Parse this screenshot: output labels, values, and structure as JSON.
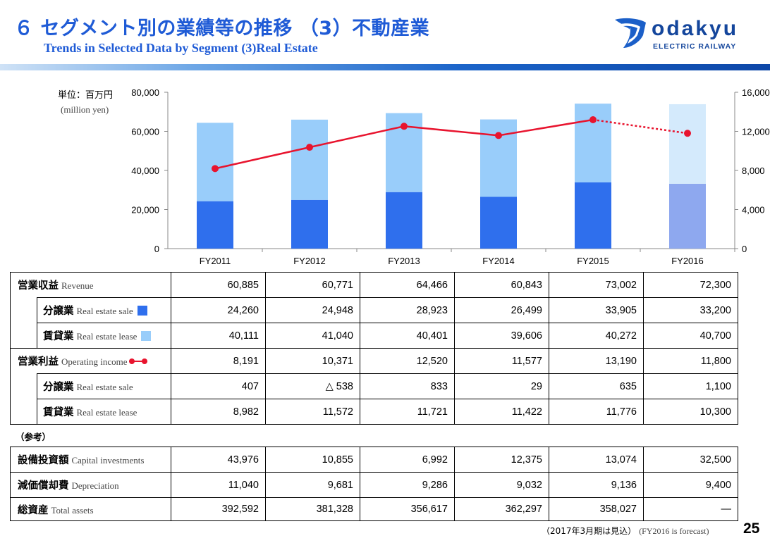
{
  "header": {
    "title_jp": "６ セグメント別の業績等の推移 （3）不動産業",
    "title_en": "Trends in Selected Data by Segment (3)Real Estate",
    "logo_word": "odakyu",
    "logo_sub": "ELECTRIC RAILWAY"
  },
  "unit": {
    "jp": "単位：百万円",
    "en": "(million yen)"
  },
  "chart_data": {
    "type": "bar",
    "categories": [
      "FY2011",
      "FY2012",
      "FY2013",
      "FY2014",
      "FY2015",
      "FY2016"
    ],
    "forecast_index": 5,
    "series": [
      {
        "name": "Real estate sale",
        "kind": "stacked-bar",
        "axis": "left",
        "color": "#2f6fed",
        "forecast_color": "#8ea8ef",
        "values": [
          24260,
          24948,
          28923,
          26499,
          33905,
          33200
        ]
      },
      {
        "name": "Real estate lease",
        "kind": "stacked-bar",
        "axis": "left",
        "color": "#99cdfa",
        "forecast_color": "#d4eafc",
        "values": [
          40111,
          41040,
          40401,
          39606,
          40272,
          40700
        ]
      },
      {
        "name": "Operating income",
        "kind": "line",
        "axis": "right",
        "color": "#e8142e",
        "values": [
          8191,
          10371,
          12520,
          11577,
          13190,
          11800
        ]
      }
    ],
    "y_left": {
      "min": 0,
      "max": 80000,
      "ticks": [
        "0",
        "20,000",
        "40,000",
        "60,000",
        "80,000"
      ],
      "tick_values": [
        0,
        20000,
        40000,
        60000,
        80000
      ]
    },
    "y_right": {
      "min": 0,
      "max": 16000,
      "ticks": [
        "0",
        "4,000",
        "8,000",
        "12,000",
        "16,000"
      ],
      "tick_values": [
        0,
        4000,
        8000,
        12000,
        16000
      ]
    }
  },
  "table": {
    "rows": [
      {
        "jp": "営業収益",
        "en": "Revenue",
        "indent": false,
        "values": [
          "60,885",
          "60,771",
          "64,466",
          "60,843",
          "73,002",
          "72,300"
        ]
      },
      {
        "jp": "分譲業",
        "en": "Real estate sale",
        "indent": true,
        "legend": "sale",
        "values": [
          "24,260",
          "24,948",
          "28,923",
          "26,499",
          "33,905",
          "33,200"
        ]
      },
      {
        "jp": "賃貸業",
        "en": "Real estate lease",
        "indent": true,
        "legend": "lease",
        "values": [
          "40,111",
          "41,040",
          "40,401",
          "39,606",
          "40,272",
          "40,700"
        ]
      },
      {
        "jp": "営業利益",
        "en": "Operating income",
        "indent": false,
        "legend": "line",
        "values": [
          "8,191",
          "10,371",
          "12,520",
          "11,577",
          "13,190",
          "11,800"
        ]
      },
      {
        "jp": "分譲業",
        "en": "Real estate sale",
        "indent": true,
        "values": [
          "407",
          "△ 538",
          "833",
          "29",
          "635",
          "1,100"
        ]
      },
      {
        "jp": "賃貸業",
        "en": "Real estate lease",
        "indent": true,
        "values": [
          "8,982",
          "11,572",
          "11,721",
          "11,422",
          "11,776",
          "10,300"
        ]
      }
    ]
  },
  "reference": {
    "label": "（参考）",
    "rows": [
      {
        "jp": "設備投資額",
        "en": "Capital  investments",
        "values": [
          "43,976",
          "10,855",
          "6,992",
          "12,375",
          "13,074",
          "32,500"
        ]
      },
      {
        "jp": "減価償却費",
        "en": "Depreciation",
        "values": [
          "11,040",
          "9,681",
          "9,286",
          "9,032",
          "9,136",
          "9,400"
        ]
      },
      {
        "jp": "総資産",
        "en": "Total assets",
        "values": [
          "392,592",
          "381,328",
          "356,617",
          "362,297",
          "358,027",
          "―"
        ]
      }
    ]
  },
  "footer": {
    "note_jp": "（2017年3月期は見込）",
    "note_en": "(FY2016 is forecast)",
    "page": "25"
  }
}
